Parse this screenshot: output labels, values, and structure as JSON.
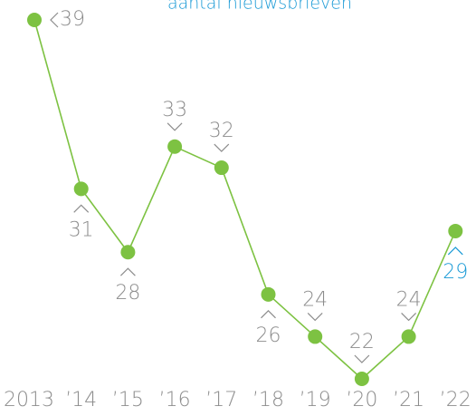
{
  "chart_data": {
    "type": "line",
    "title": "aantal nieuwsbrieven",
    "categories": [
      "2013",
      "’14",
      "’15",
      "’16",
      "’17",
      "’18",
      "’19",
      "’20",
      "’21",
      "’22"
    ],
    "series": [
      {
        "name": "aantal nieuwsbrieven",
        "color": "#7dc242",
        "values": [
          39,
          31,
          28,
          33,
          32,
          26,
          24,
          22,
          24,
          29
        ]
      }
    ],
    "value_label_colors": [
      "#8c8c8c",
      "#8c8c8c",
      "#8c8c8c",
      "#8c8c8c",
      "#8c8c8c",
      "#8c8c8c",
      "#8c8c8c",
      "#8c8c8c",
      "#8c8c8c",
      "#1a9ad6"
    ],
    "title_color": "#1a9ad6"
  }
}
